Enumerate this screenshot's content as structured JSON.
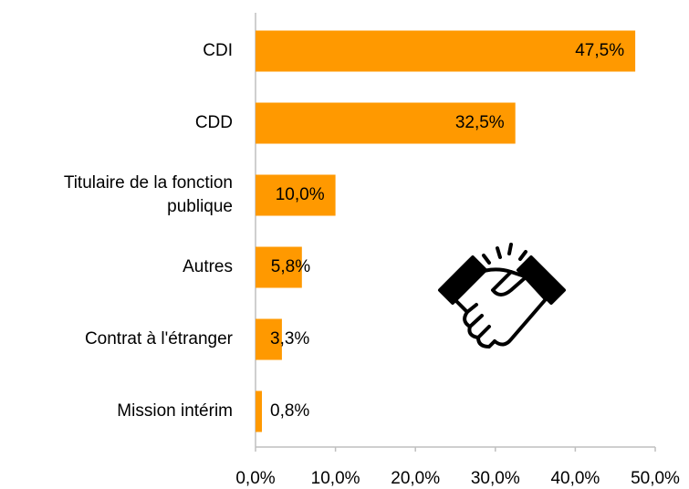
{
  "chart_data": {
    "type": "bar",
    "orientation": "horizontal",
    "categories": [
      "CDI",
      "CDD",
      "Titulaire de la fonction publique",
      "Autres",
      "Contrat à l'étranger",
      "Mission intérim"
    ],
    "values": [
      47.5,
      32.5,
      10.0,
      5.8,
      3.3,
      0.8
    ],
    "value_labels": [
      "47,5%",
      "32,5%",
      "10,0%",
      "5,8%",
      "3,3%",
      "0,8%"
    ],
    "color": "#ff9900",
    "xlim": [
      0,
      50
    ],
    "xticks": [
      {
        "value": 0,
        "label": "0,0%"
      },
      {
        "value": 10,
        "label": "10,0%"
      },
      {
        "value": 20,
        "label": "20,0%"
      },
      {
        "value": 30,
        "label": "30,0%"
      },
      {
        "value": 40,
        "label": "40,0%"
      },
      {
        "value": 50,
        "label": "50,0%"
      }
    ],
    "grid": false
  }
}
